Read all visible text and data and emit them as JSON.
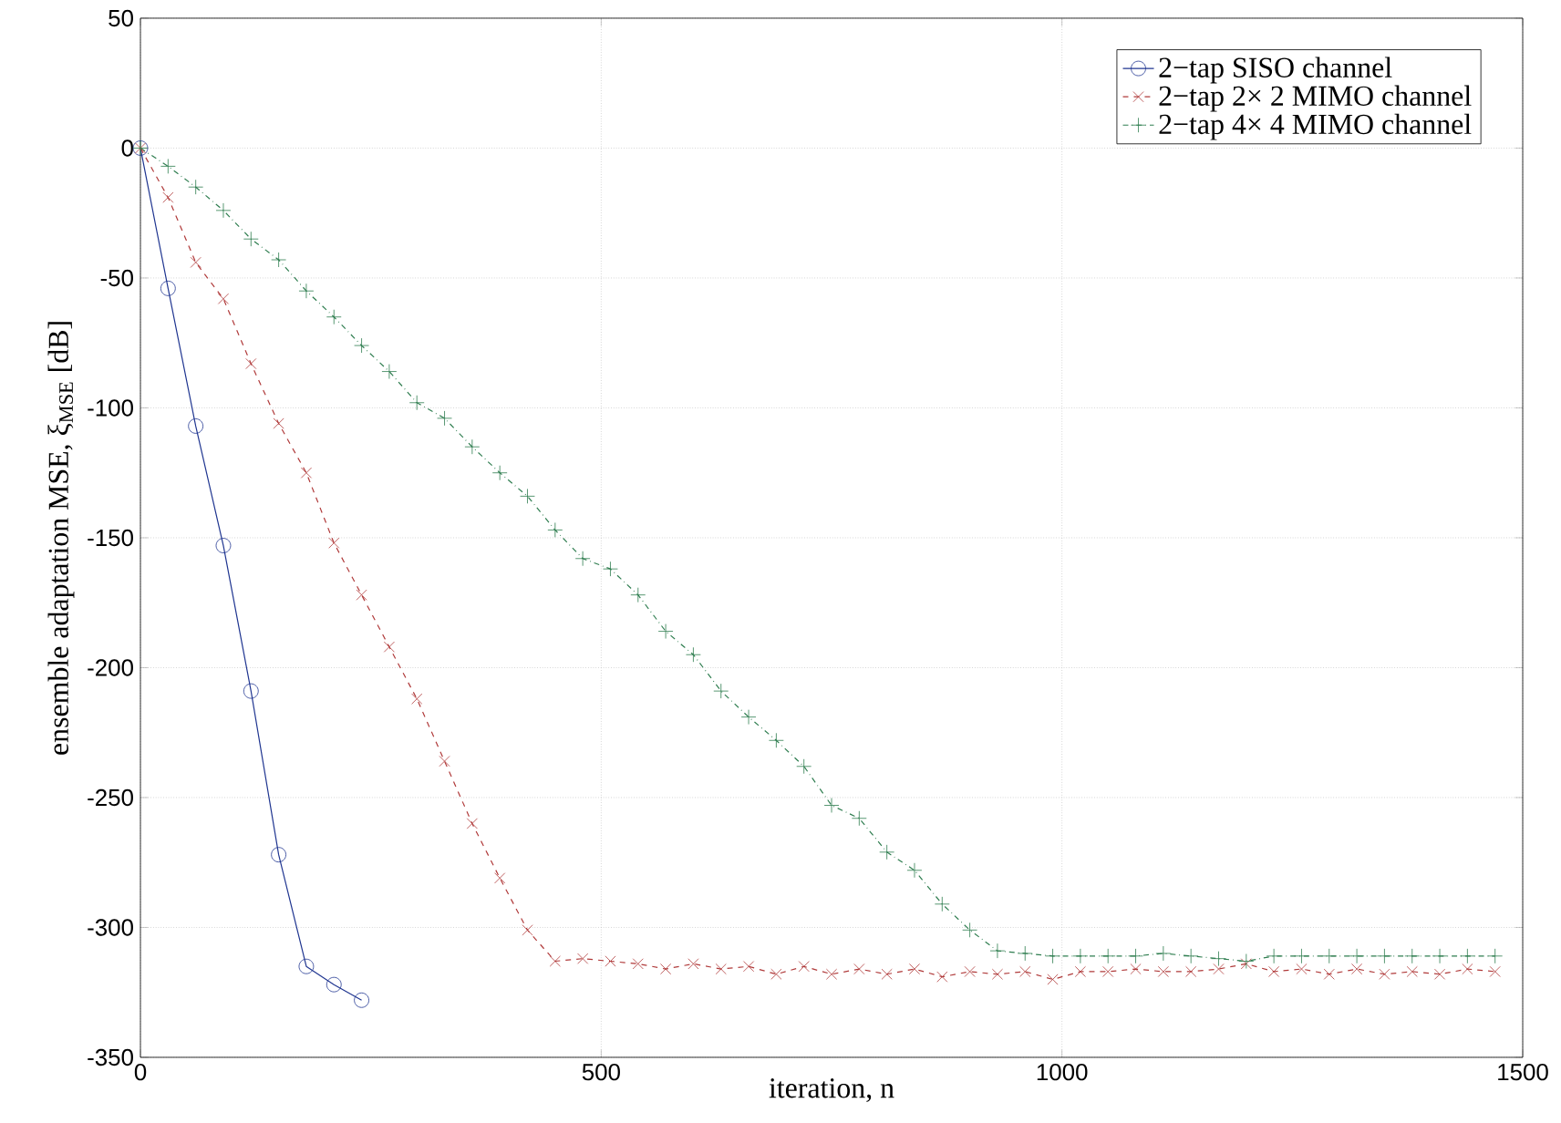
{
  "chart_data": {
    "type": "line",
    "xlabel": "iteration, n",
    "ylabel": "ensemble adaptation MSE, ξ$_{MSE}$ [dB]",
    "xlim": [
      0,
      1500
    ],
    "ylim": [
      -350,
      50
    ],
    "xticks": [
      0,
      500,
      1000,
      1500
    ],
    "yticks": [
      -350,
      -300,
      -250,
      -200,
      -150,
      -100,
      -50,
      0,
      50
    ],
    "grid": true,
    "legend": "top right",
    "series": [
      {
        "name": "2−tap SISO channel",
        "color": "#1f3590",
        "marker": "circle",
        "line_style": "solid",
        "x": [
          0,
          30,
          60,
          90,
          120,
          150,
          180,
          210,
          240
        ],
        "values": [
          0,
          -54,
          -107,
          -153,
          -209,
          -272,
          -315,
          -322,
          -328
        ]
      },
      {
        "name": "2−tap 2× 2 MIMO channel",
        "color": "#b03a3a",
        "marker": "cross",
        "line_style": "dashed",
        "x": [
          0,
          30,
          60,
          90,
          120,
          150,
          180,
          210,
          240,
          270,
          300,
          330,
          360,
          390,
          420,
          450,
          480,
          510,
          540,
          570,
          600,
          630,
          660,
          690,
          720,
          750,
          780,
          810,
          840,
          870,
          900,
          930,
          960,
          990,
          1020,
          1050,
          1080,
          1110,
          1140,
          1170,
          1200,
          1230,
          1260,
          1290,
          1320,
          1350,
          1380,
          1410,
          1440,
          1470
        ],
        "values": [
          0,
          -19,
          -44,
          -58,
          -83,
          -106,
          -125,
          -152,
          -172,
          -192,
          -212,
          -236,
          -260,
          -281,
          -301,
          -313,
          -312,
          -313,
          -314,
          -316,
          -314,
          -316,
          -315,
          -318,
          -315,
          -318,
          -316,
          -318,
          -316,
          -319,
          -317,
          -318,
          -317,
          -320,
          -317,
          -317,
          -316,
          -317,
          -317,
          -316,
          -314,
          -317,
          -316,
          -318,
          -316,
          -318,
          -317,
          -318,
          -316,
          -317
        ]
      },
      {
        "name": "2−tap 4× 4 MIMO channel",
        "color": "#2e7d4f",
        "marker": "plus",
        "line_style": "dashdot",
        "x": [
          0,
          30,
          60,
          90,
          120,
          150,
          180,
          210,
          240,
          270,
          300,
          330,
          360,
          390,
          420,
          450,
          480,
          510,
          540,
          570,
          600,
          630,
          660,
          690,
          720,
          750,
          780,
          810,
          840,
          870,
          900,
          930,
          960,
          990,
          1020,
          1050,
          1080,
          1110,
          1140,
          1170,
          1200,
          1230,
          1260,
          1290,
          1320,
          1350,
          1380,
          1410,
          1440,
          1470
        ],
        "values": [
          0,
          -7,
          -15,
          -24,
          -35,
          -43,
          -55,
          -65,
          -76,
          -86,
          -98,
          -104,
          -115,
          -125,
          -134,
          -147,
          -158,
          -162,
          -172,
          -186,
          -195,
          -209,
          -219,
          -228,
          -238,
          -253,
          -258,
          -271,
          -278,
          -291,
          -301,
          -309,
          -310,
          -311,
          -311,
          -311,
          -311,
          -310,
          -311,
          -312,
          -313,
          -311,
          -311,
          -311,
          -311,
          -311,
          -311,
          -311,
          -311,
          -311
        ]
      }
    ]
  }
}
